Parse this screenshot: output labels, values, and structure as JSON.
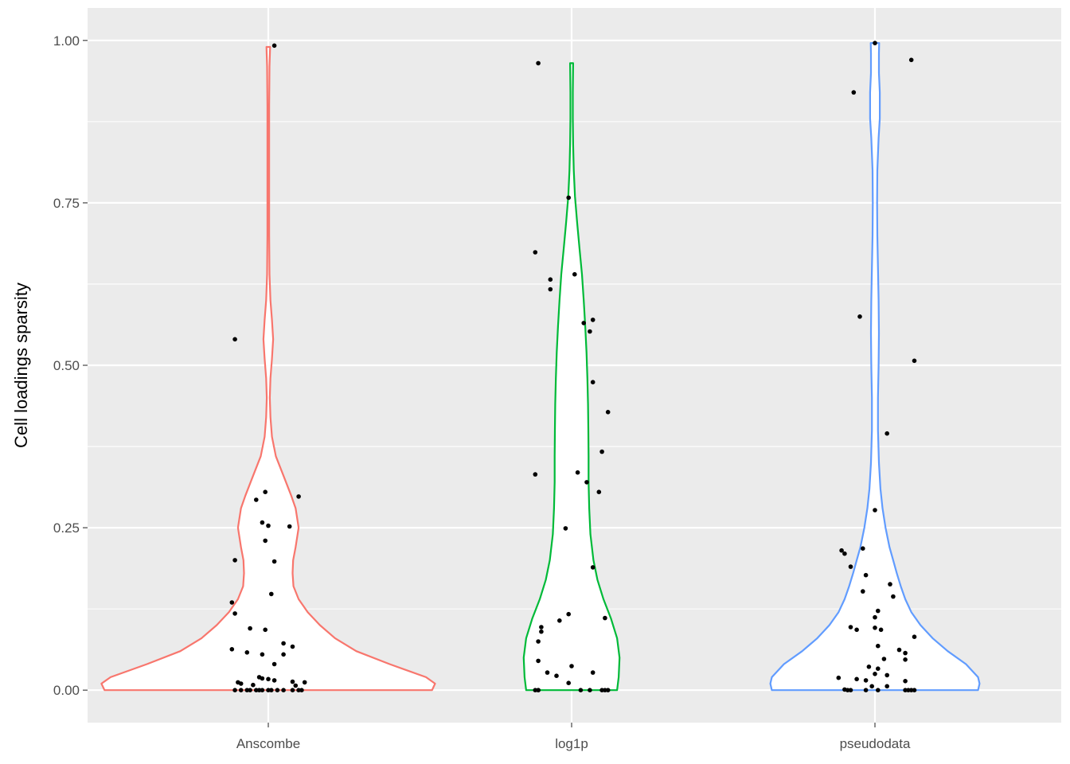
{
  "chart_data": {
    "type": "violin",
    "title": "",
    "xlabel": "",
    "ylabel": "Cell loadings sparsity",
    "ylim": [
      -0.05,
      1.05
    ],
    "yticks": [
      0,
      0.25,
      0.5,
      0.75,
      1
    ],
    "ytick_labels": [
      "0.00",
      "0.25",
      "0.50",
      "0.75",
      "1.00"
    ],
    "categories": [
      "Anscombe",
      "log1p",
      "pseudodata"
    ],
    "grid": true,
    "legend": "none",
    "colors": {
      "Anscombe": "#F8766D",
      "log1p": "#00BA38",
      "pseudodata": "#619CFF",
      "panel": "#EBEBEB",
      "grid": "#FFFFFF",
      "points": "#000000"
    },
    "series": [
      {
        "category": "Anscombe",
        "violin_range": [
          0,
          0.99
        ],
        "density_profile": [
          [
            0,
            0.54
          ],
          [
            0.01,
            0.55
          ],
          [
            0.02,
            0.52
          ],
          [
            0.04,
            0.4
          ],
          [
            0.06,
            0.29
          ],
          [
            0.08,
            0.22
          ],
          [
            0.1,
            0.17
          ],
          [
            0.12,
            0.13
          ],
          [
            0.14,
            0.1
          ],
          [
            0.16,
            0.083
          ],
          [
            0.18,
            0.08
          ],
          [
            0.2,
            0.082
          ],
          [
            0.22,
            0.09
          ],
          [
            0.25,
            0.1
          ],
          [
            0.28,
            0.09
          ],
          [
            0.3,
            0.075
          ],
          [
            0.33,
            0.05
          ],
          [
            0.36,
            0.025
          ],
          [
            0.39,
            0.012
          ],
          [
            0.42,
            0.007
          ],
          [
            0.45,
            0.005
          ],
          [
            0.48,
            0.007
          ],
          [
            0.51,
            0.012
          ],
          [
            0.54,
            0.016
          ],
          [
            0.57,
            0.012
          ],
          [
            0.6,
            0.007
          ],
          [
            0.64,
            0.004
          ],
          [
            0.7,
            0.003
          ],
          [
            0.8,
            0.003
          ],
          [
            0.9,
            0.003
          ],
          [
            0.96,
            0.004
          ],
          [
            0.99,
            0.006
          ]
        ],
        "points": [
          [
            -0.11,
            0.54
          ],
          [
            0.02,
            0.992
          ],
          [
            -0.01,
            0.305
          ],
          [
            0.1,
            0.298
          ],
          [
            -0.04,
            0.293
          ],
          [
            -0.02,
            0.258
          ],
          [
            0.0,
            0.253
          ],
          [
            0.07,
            0.252
          ],
          [
            -0.01,
            0.23
          ],
          [
            -0.11,
            0.2
          ],
          [
            0.02,
            0.198
          ],
          [
            0.01,
            0.148
          ],
          [
            -0.12,
            0.135
          ],
          [
            -0.11,
            0.118
          ],
          [
            -0.06,
            0.095
          ],
          [
            -0.01,
            0.093
          ],
          [
            0.05,
            0.072
          ],
          [
            0.08,
            0.067
          ],
          [
            -0.12,
            0.063
          ],
          [
            -0.07,
            0.058
          ],
          [
            0.05,
            0.055
          ],
          [
            -0.02,
            0.055
          ],
          [
            0.02,
            0.04
          ],
          [
            -0.03,
            0.02
          ],
          [
            -0.02,
            0.018
          ],
          [
            0.0,
            0.017
          ],
          [
            0.02,
            0.015
          ],
          [
            0.08,
            0.013
          ],
          [
            0.12,
            0.012
          ],
          [
            -0.1,
            0.012
          ],
          [
            -0.09,
            0.01
          ],
          [
            -0.05,
            0.008
          ],
          [
            0.09,
            0.007
          ],
          [
            -0.11,
            0
          ],
          [
            -0.09,
            0
          ],
          [
            -0.07,
            0
          ],
          [
            -0.06,
            0
          ],
          [
            -0.04,
            0
          ],
          [
            -0.03,
            0
          ],
          [
            -0.02,
            0
          ],
          [
            0.0,
            0
          ],
          [
            0.01,
            0
          ],
          [
            0.03,
            0
          ],
          [
            0.05,
            0
          ],
          [
            0.08,
            0
          ],
          [
            0.1,
            0
          ],
          [
            0.11,
            0
          ]
        ]
      },
      {
        "category": "log1p",
        "violin_range": [
          0,
          0.965
        ],
        "density_profile": [
          [
            0,
            0.15
          ],
          [
            0.02,
            0.155
          ],
          [
            0.05,
            0.158
          ],
          [
            0.08,
            0.15
          ],
          [
            0.11,
            0.13
          ],
          [
            0.14,
            0.105
          ],
          [
            0.17,
            0.085
          ],
          [
            0.2,
            0.072
          ],
          [
            0.24,
            0.062
          ],
          [
            0.28,
            0.058
          ],
          [
            0.32,
            0.056
          ],
          [
            0.36,
            0.056
          ],
          [
            0.4,
            0.055
          ],
          [
            0.44,
            0.054
          ],
          [
            0.48,
            0.052
          ],
          [
            0.52,
            0.049
          ],
          [
            0.56,
            0.045
          ],
          [
            0.6,
            0.04
          ],
          [
            0.64,
            0.034
          ],
          [
            0.68,
            0.026
          ],
          [
            0.72,
            0.018
          ],
          [
            0.76,
            0.011
          ],
          [
            0.8,
            0.007
          ],
          [
            0.84,
            0.005
          ],
          [
            0.88,
            0.004
          ],
          [
            0.92,
            0.004
          ],
          [
            0.965,
            0.005
          ]
        ],
        "points": [
          [
            -0.11,
            0.965
          ],
          [
            -0.01,
            0.758
          ],
          [
            -0.12,
            0.674
          ],
          [
            0.01,
            0.64
          ],
          [
            -0.07,
            0.632
          ],
          [
            -0.07,
            0.617
          ],
          [
            0.07,
            0.57
          ],
          [
            0.04,
            0.565
          ],
          [
            0.06,
            0.552
          ],
          [
            0.07,
            0.474
          ],
          [
            0.12,
            0.428
          ],
          [
            0.1,
            0.367
          ],
          [
            0.02,
            0.335
          ],
          [
            -0.12,
            0.332
          ],
          [
            0.05,
            0.32
          ],
          [
            0.09,
            0.305
          ],
          [
            -0.02,
            0.249
          ],
          [
            0.07,
            0.189
          ],
          [
            -0.01,
            0.117
          ],
          [
            0.11,
            0.111
          ],
          [
            -0.04,
            0.107
          ],
          [
            -0.1,
            0.097
          ],
          [
            -0.1,
            0.09
          ],
          [
            -0.11,
            0.075
          ],
          [
            -0.11,
            0.045
          ],
          [
            0.0,
            0.037
          ],
          [
            -0.08,
            0.027
          ],
          [
            0.07,
            0.027
          ],
          [
            -0.05,
            0.022
          ],
          [
            -0.01,
            0.011
          ],
          [
            -0.12,
            0
          ],
          [
            -0.11,
            0
          ],
          [
            -0.11,
            0
          ],
          [
            0.03,
            0
          ],
          [
            0.06,
            0
          ],
          [
            0.1,
            0
          ],
          [
            0.11,
            0
          ],
          [
            0.12,
            0
          ]
        ]
      },
      {
        "category": "pseudodata",
        "violin_range": [
          0,
          0.996
        ],
        "density_profile": [
          [
            0,
            0.34
          ],
          [
            0.01,
            0.345
          ],
          [
            0.02,
            0.34
          ],
          [
            0.04,
            0.3
          ],
          [
            0.06,
            0.24
          ],
          [
            0.08,
            0.19
          ],
          [
            0.1,
            0.15
          ],
          [
            0.12,
            0.12
          ],
          [
            0.14,
            0.1
          ],
          [
            0.16,
            0.085
          ],
          [
            0.18,
            0.072
          ],
          [
            0.2,
            0.06
          ],
          [
            0.22,
            0.048
          ],
          [
            0.25,
            0.035
          ],
          [
            0.28,
            0.025
          ],
          [
            0.31,
            0.018
          ],
          [
            0.35,
            0.013
          ],
          [
            0.4,
            0.01
          ],
          [
            0.45,
            0.01
          ],
          [
            0.5,
            0.012
          ],
          [
            0.55,
            0.013
          ],
          [
            0.6,
            0.012
          ],
          [
            0.65,
            0.01
          ],
          [
            0.7,
            0.008
          ],
          [
            0.75,
            0.007
          ],
          [
            0.8,
            0.008
          ],
          [
            0.85,
            0.012
          ],
          [
            0.88,
            0.016
          ],
          [
            0.92,
            0.016
          ],
          [
            0.95,
            0.013
          ],
          [
            0.98,
            0.013
          ],
          [
            0.996,
            0.014
          ]
        ],
        "points": [
          [
            0.0,
            0.996
          ],
          [
            0.12,
            0.97
          ],
          [
            -0.07,
            0.92
          ],
          [
            -0.05,
            0.575
          ],
          [
            0.13,
            0.507
          ],
          [
            0.04,
            0.395
          ],
          [
            0.0,
            0.277
          ],
          [
            -0.11,
            0.215
          ],
          [
            -0.1,
            0.21
          ],
          [
            -0.04,
            0.218
          ],
          [
            -0.08,
            0.19
          ],
          [
            -0.03,
            0.177
          ],
          [
            0.05,
            0.163
          ],
          [
            -0.04,
            0.152
          ],
          [
            0.06,
            0.144
          ],
          [
            0.01,
            0.122
          ],
          [
            0.0,
            0.112
          ],
          [
            -0.08,
            0.097
          ],
          [
            -0.06,
            0.093
          ],
          [
            0.0,
            0.096
          ],
          [
            0.02,
            0.093
          ],
          [
            0.13,
            0.082
          ],
          [
            0.01,
            0.068
          ],
          [
            0.08,
            0.062
          ],
          [
            0.1,
            0.057
          ],
          [
            0.03,
            0.048
          ],
          [
            0.1,
            0.047
          ],
          [
            -0.02,
            0.036
          ],
          [
            0.01,
            0.033
          ],
          [
            0.0,
            0.025
          ],
          [
            0.04,
            0.023
          ],
          [
            -0.12,
            0.019
          ],
          [
            -0.06,
            0.017
          ],
          [
            -0.03,
            0.015
          ],
          [
            0.1,
            0.014
          ],
          [
            0.04,
            0.006
          ],
          [
            -0.01,
            0.006
          ],
          [
            -0.1,
            0.001
          ],
          [
            -0.09,
            0
          ],
          [
            -0.08,
            0
          ],
          [
            -0.03,
            0
          ],
          [
            0.01,
            0
          ],
          [
            0.1,
            0
          ],
          [
            0.11,
            0
          ],
          [
            0.12,
            0
          ],
          [
            0.13,
            0
          ]
        ]
      }
    ]
  }
}
